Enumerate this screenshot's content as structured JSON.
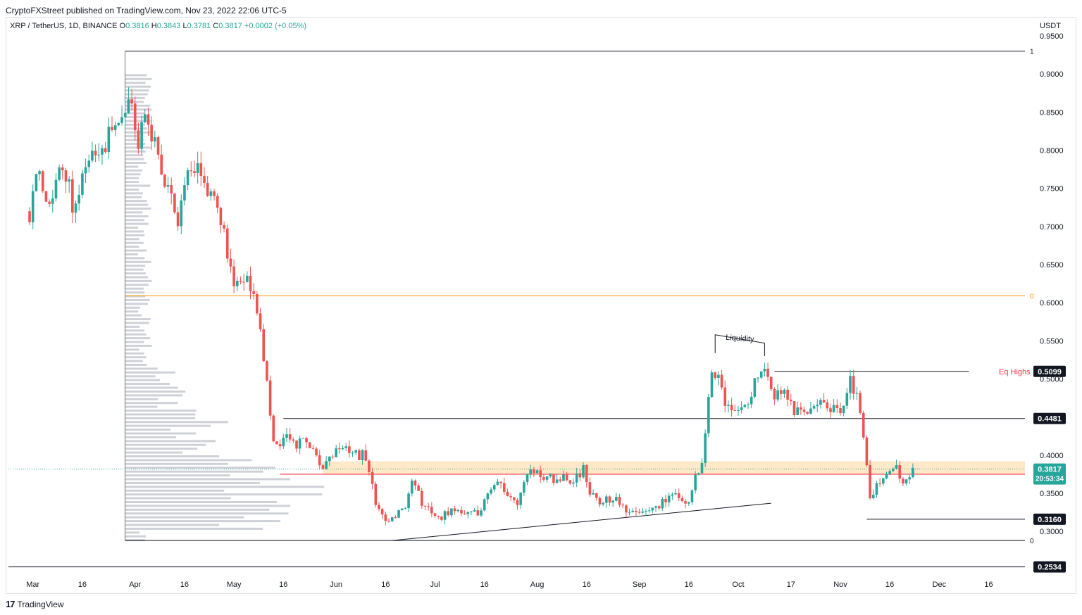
{
  "header": {
    "published": "CryptoFXStreet published on TradingView.com, Nov 23, 2022 22:06 UTC-5"
  },
  "symbol": {
    "title": "XRP / TetherUS, 1D, BINANCE",
    "open_label": "O",
    "open": "0.3816",
    "high_label": "H",
    "high": "0.3843",
    "low_label": "L",
    "low": "0.3781",
    "close_label": "C",
    "close": "0.3817",
    "change": "+0.0002 (+0.05%)"
  },
  "currency": "USDT",
  "footer": {
    "brand": "TradingView",
    "logo": "17"
  },
  "chart_data": {
    "type": "candlestick",
    "ylim": [
      0.242,
      0.975
    ],
    "y_ticks": [
      0.95,
      0.9,
      0.85,
      0.8,
      0.75,
      0.7,
      0.65,
      0.6,
      0.55,
      0.5,
      0.45,
      0.4,
      0.35,
      0.3
    ],
    "y_tick_labels": [
      "0.9500",
      "0.9000",
      "0.8500",
      "0.8000",
      "0.7500",
      "0.7000",
      "0.6500",
      "0.6000",
      "0.5500",
      "0.5000",
      "0.4500",
      "0.4000",
      "0.3500",
      "0.3000"
    ],
    "x_ticks": [
      {
        "label": "Mar",
        "date": "2022-03-01"
      },
      {
        "label": "16",
        "date": "2022-03-16"
      },
      {
        "label": "Apr",
        "date": "2022-04-01"
      },
      {
        "label": "16",
        "date": "2022-04-16"
      },
      {
        "label": "May",
        "date": "2022-05-01"
      },
      {
        "label": "16",
        "date": "2022-05-16"
      },
      {
        "label": "Jun",
        "date": "2022-06-01"
      },
      {
        "label": "16",
        "date": "2022-06-16"
      },
      {
        "label": "Jul",
        "date": "2022-07-01"
      },
      {
        "label": "16",
        "date": "2022-07-16"
      },
      {
        "label": "Aug",
        "date": "2022-08-01"
      },
      {
        "label": "16",
        "date": "2022-08-16"
      },
      {
        "label": "Sep",
        "date": "2022-09-01"
      },
      {
        "label": "16",
        "date": "2022-09-16"
      },
      {
        "label": "Oct",
        "date": "2022-10-01"
      },
      {
        "label": "17",
        "date": "2022-10-17"
      },
      {
        "label": "Nov",
        "date": "2022-11-01"
      },
      {
        "label": "16",
        "date": "2022-11-16"
      },
      {
        "label": "Dec",
        "date": "2022-12-01"
      },
      {
        "label": "16",
        "date": "2022-12-16"
      }
    ],
    "up_color": "#26a69a",
    "down_color": "#ef5350",
    "anchors": [
      [
        "2022-02-28",
        0.72
      ],
      [
        "2022-03-02",
        0.78
      ],
      [
        "2022-03-05",
        0.73
      ],
      [
        "2022-03-08",
        0.76
      ],
      [
        "2022-03-11",
        0.77
      ],
      [
        "2022-03-13",
        0.73
      ],
      [
        "2022-03-16",
        0.76
      ],
      [
        "2022-03-18",
        0.8
      ],
      [
        "2022-03-21",
        0.78
      ],
      [
        "2022-03-24",
        0.82
      ],
      [
        "2022-03-26",
        0.84
      ],
      [
        "2022-03-28",
        0.84
      ],
      [
        "2022-03-29",
        0.86
      ],
      [
        "2022-03-31",
        0.86
      ],
      [
        "2022-04-02",
        0.81
      ],
      [
        "2022-04-04",
        0.84
      ],
      [
        "2022-04-06",
        0.82
      ],
      [
        "2022-04-08",
        0.79
      ],
      [
        "2022-04-10",
        0.76
      ],
      [
        "2022-04-12",
        0.73
      ],
      [
        "2022-04-14",
        0.71
      ],
      [
        "2022-04-17",
        0.76
      ],
      [
        "2022-04-20",
        0.78
      ],
      [
        "2022-04-22",
        0.76
      ],
      [
        "2022-04-25",
        0.73
      ],
      [
        "2022-04-28",
        0.7
      ],
      [
        "2022-04-30",
        0.64
      ],
      [
        "2022-05-03",
        0.62
      ],
      [
        "2022-05-05",
        0.64
      ],
      [
        "2022-05-07",
        0.61
      ],
      [
        "2022-05-09",
        0.56
      ],
      [
        "2022-05-11",
        0.5
      ],
      [
        "2022-05-13",
        0.42
      ],
      [
        "2022-05-15",
        0.41
      ],
      [
        "2022-05-17",
        0.43
      ],
      [
        "2022-05-20",
        0.41
      ],
      [
        "2022-05-23",
        0.42
      ],
      [
        "2022-05-26",
        0.4
      ],
      [
        "2022-05-28",
        0.38
      ],
      [
        "2022-05-31",
        0.4
      ],
      [
        "2022-06-03",
        0.41
      ],
      [
        "2022-06-06",
        0.4
      ],
      [
        "2022-06-09",
        0.4
      ],
      [
        "2022-06-11",
        0.38
      ],
      [
        "2022-06-13",
        0.34
      ],
      [
        "2022-06-15",
        0.32
      ],
      [
        "2022-06-17",
        0.31
      ],
      [
        "2022-06-19",
        0.32
      ],
      [
        "2022-06-22",
        0.33
      ],
      [
        "2022-06-24",
        0.36
      ],
      [
        "2022-06-27",
        0.34
      ],
      [
        "2022-06-30",
        0.32
      ],
      [
        "2022-07-03",
        0.32
      ],
      [
        "2022-07-06",
        0.33
      ],
      [
        "2022-07-09",
        0.33
      ],
      [
        "2022-07-12",
        0.32
      ],
      [
        "2022-07-15",
        0.33
      ],
      [
        "2022-07-18",
        0.36
      ],
      [
        "2022-07-21",
        0.36
      ],
      [
        "2022-07-24",
        0.35
      ],
      [
        "2022-07-26",
        0.34
      ],
      [
        "2022-07-29",
        0.37
      ],
      [
        "2022-07-31",
        0.38
      ],
      [
        "2022-08-03",
        0.37
      ],
      [
        "2022-08-06",
        0.37
      ],
      [
        "2022-08-09",
        0.37
      ],
      [
        "2022-08-12",
        0.37
      ],
      [
        "2022-08-15",
        0.38
      ],
      [
        "2022-08-17",
        0.35
      ],
      [
        "2022-08-19",
        0.34
      ],
      [
        "2022-08-22",
        0.34
      ],
      [
        "2022-08-25",
        0.34
      ],
      [
        "2022-08-28",
        0.33
      ],
      [
        "2022-08-31",
        0.33
      ],
      [
        "2022-09-03",
        0.33
      ],
      [
        "2022-09-06",
        0.33
      ],
      [
        "2022-09-08",
        0.34
      ],
      [
        "2022-09-10",
        0.35
      ],
      [
        "2022-09-13",
        0.35
      ],
      [
        "2022-09-15",
        0.33
      ],
      [
        "2022-09-18",
        0.37
      ],
      [
        "2022-09-20",
        0.39
      ],
      [
        "2022-09-22",
        0.48
      ],
      [
        "2022-09-23",
        0.5
      ],
      [
        "2022-09-25",
        0.5
      ],
      [
        "2022-09-27",
        0.47
      ],
      [
        "2022-09-29",
        0.46
      ],
      [
        "2022-10-01",
        0.46
      ],
      [
        "2022-10-04",
        0.47
      ],
      [
        "2022-10-06",
        0.5
      ],
      [
        "2022-10-08",
        0.52
      ],
      [
        "2022-10-10",
        0.51
      ],
      [
        "2022-10-12",
        0.48
      ],
      [
        "2022-10-15",
        0.48
      ],
      [
        "2022-10-18",
        0.46
      ],
      [
        "2022-10-21",
        0.46
      ],
      [
        "2022-10-24",
        0.46
      ],
      [
        "2022-10-27",
        0.47
      ],
      [
        "2022-10-30",
        0.46
      ],
      [
        "2022-11-02",
        0.46
      ],
      [
        "2022-11-04",
        0.5
      ],
      [
        "2022-11-06",
        0.48
      ],
      [
        "2022-11-08",
        0.43
      ],
      [
        "2022-11-09",
        0.39
      ],
      [
        "2022-11-10",
        0.35
      ],
      [
        "2022-11-12",
        0.36
      ],
      [
        "2022-11-14",
        0.37
      ],
      [
        "2022-11-16",
        0.38
      ],
      [
        "2022-11-18",
        0.38
      ],
      [
        "2022-11-20",
        0.36
      ],
      [
        "2022-11-22",
        0.37
      ],
      [
        "2022-11-23",
        0.3817
      ]
    ],
    "annotations": {
      "levels": [
        {
          "value": 0.5099,
          "label": "0.5099",
          "text": "Eq Highs"
        },
        {
          "value": 0.4481,
          "label": "0.4481"
        },
        {
          "value": 0.3817,
          "label": "0.3817",
          "countdown": "20:53:34"
        },
        {
          "value": 0.316,
          "label": "0.3160"
        },
        {
          "value": 0.2534,
          "label": "0.2534"
        }
      ],
      "liquidity_text": "Liquidity",
      "fib_labels": {
        "top": "1",
        "mid": "0",
        "bottom": "0"
      },
      "fib_levels": {
        "top": 0.93,
        "mid": 0.609,
        "bottom": 0.288
      },
      "zone": {
        "from": 0.375,
        "to": 0.392
      },
      "red_line": 0.375
    }
  }
}
